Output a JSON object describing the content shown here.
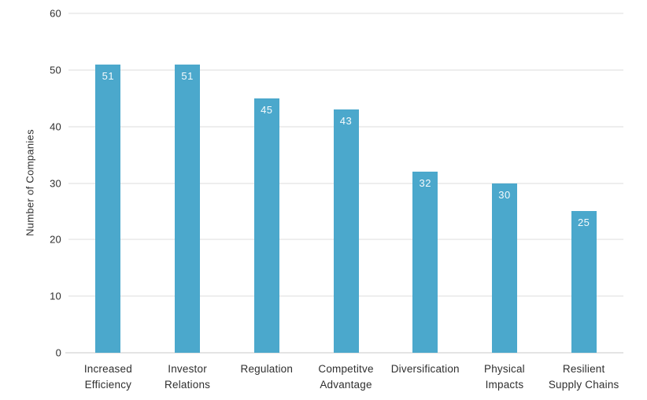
{
  "chart_data": {
    "type": "bar",
    "title": "",
    "xlabel": "",
    "ylabel": "Number of Companies",
    "categories": [
      "Increased\nEfficiency",
      "Investor\nRelations",
      "Regulation",
      "Competitve\nAdvantage",
      "Diversification",
      "Physical\nImpacts",
      "Resilient\nSupply Chains"
    ],
    "values": [
      51,
      51,
      45,
      43,
      32,
      30,
      25
    ],
    "value_labels": [
      "51",
      "51",
      "45",
      "43",
      "32",
      "30",
      "25"
    ],
    "ylim": [
      0,
      60
    ],
    "yticks": [
      0,
      10,
      20,
      30,
      40,
      50,
      60
    ],
    "grid": true,
    "legend": "none",
    "colors": {
      "bar": "#4ba8cc",
      "gridline": "#dcdcdc",
      "baseline": "#c8c8c8",
      "axis_text": "#2f2f2f",
      "value_label": "#ffffff",
      "background": "#ffffff"
    }
  }
}
